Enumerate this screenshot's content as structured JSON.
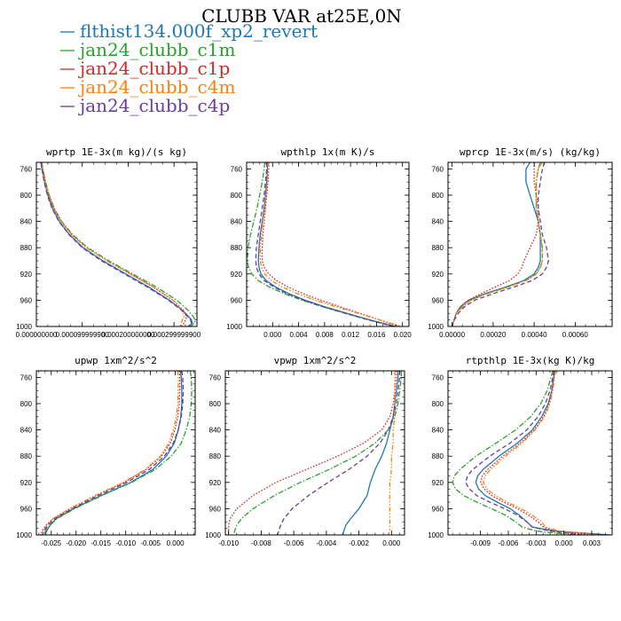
{
  "figure": {
    "title": "CLUBB VAR at25E,0N"
  },
  "legend": [
    {
      "label": "flthist134.000f_xp2_revert",
      "color": "#1f77b4",
      "dash": "solid"
    },
    {
      "label": "jan24_clubb_c1m",
      "color": "#2ca02c",
      "dash": "dashdot"
    },
    {
      "label": "jan24_clubb_c1p",
      "color": "#d62728",
      "dash": "dot"
    },
    {
      "label": "jan24_clubb_c4m",
      "color": "#ff7f0e",
      "dash": "dashdotdot"
    },
    {
      "label": "jan24_clubb_c4p",
      "color": "#6a3d9a",
      "dash": "dash"
    }
  ],
  "chart_data": [
    {
      "type": "line",
      "title": "wprtp  1E-3x(m kg)/(s kg)",
      "xlim": [
        0.0,
        0.00035
      ],
      "ylim": [
        1000,
        750
      ],
      "yticks": [
        760,
        800,
        840,
        880,
        920,
        960,
        1000
      ],
      "xticks": [
        "0.000000000",
        "0.000099999900",
        "0.000200000000",
        "0.000299999900"
      ],
      "xtick_values": [
        0.0,
        0.0001,
        0.0002,
        0.0003
      ],
      "y": [
        750,
        760,
        780,
        800,
        820,
        840,
        860,
        880,
        900,
        920,
        940,
        960,
        975,
        985,
        990,
        995,
        1000
      ],
      "series": [
        {
          "values": [
            1e-05,
            1.2e-05,
            1.8e-05,
            2.5e-05,
            3.5e-05,
            5e-05,
            7.2e-05,
            0.000102,
            0.000145,
            0.000195,
            0.000245,
            0.00029,
            0.000318,
            0.000332,
            0.000338,
            0.00034,
            0.00033
          ]
        },
        {
          "values": [
            1.2e-05,
            1.4e-05,
            2e-05,
            2.8e-05,
            3.9e-05,
            5.5e-05,
            7.9e-05,
            0.000112,
            0.000158,
            0.00021,
            0.000262,
            0.000306,
            0.00033,
            0.000342,
            0.000346,
            0.000345,
            0.000335
          ]
        },
        {
          "values": [
            1.2e-05,
            1.4e-05,
            2e-05,
            2.7e-05,
            3.8e-05,
            5.4e-05,
            7.7e-05,
            0.000109,
            0.000154,
            0.000205,
            0.000255,
            0.000298,
            0.00032,
            0.000328,
            0.000325,
            0.000322,
            0.000315
          ]
        },
        {
          "values": [
            1.1e-05,
            1.3e-05,
            1.9e-05,
            2.7e-05,
            3.8e-05,
            5.4e-05,
            7.7e-05,
            0.000109,
            0.000154,
            0.000205,
            0.000255,
            0.000298,
            0.000318,
            0.000322,
            0.000318,
            0.000316,
            0.000312
          ]
        },
        {
          "values": [
            1e-05,
            1.2e-05,
            1.7e-05,
            2.4e-05,
            3.4e-05,
            4.9e-05,
            7.1e-05,
            0.0001,
            0.000142,
            0.000192,
            0.000242,
            0.000288,
            0.000316,
            0.00033,
            0.000336,
            0.000338,
            0.000332
          ]
        }
      ]
    },
    {
      "type": "line",
      "title": "wpthlp  1x(m K)/s",
      "xlim": [
        -0.004,
        0.021
      ],
      "ylim": [
        1000,
        750
      ],
      "yticks": [
        760,
        800,
        840,
        880,
        920,
        960,
        1000
      ],
      "xticks": [
        "0.000",
        "0.004",
        "0.008",
        "0.012",
        "0.016",
        "0.020"
      ],
      "xtick_values": [
        0.0,
        0.004,
        0.008,
        0.012,
        0.016,
        0.02
      ],
      "y": [
        750,
        760,
        780,
        800,
        820,
        840,
        860,
        880,
        900,
        910,
        920,
        930,
        940,
        950,
        960,
        970,
        980,
        990,
        1000
      ],
      "series": [
        {
          "values": [
            -0.0008,
            -0.0008,
            -0.0009,
            -0.0011,
            -0.0013,
            -0.0016,
            -0.0019,
            -0.0021,
            -0.0022,
            -0.0021,
            -0.0018,
            -0.001,
            0.0005,
            0.0025,
            0.005,
            0.008,
            0.0115,
            0.015,
            0.019
          ]
        },
        {
          "values": [
            -0.0012,
            -0.0013,
            -0.0016,
            -0.002,
            -0.0024,
            -0.0029,
            -0.0034,
            -0.0038,
            -0.0039,
            -0.0037,
            -0.0032,
            -0.0022,
            -0.0005,
            0.0018,
            0.0045,
            0.0077,
            0.0112,
            0.0148,
            0.0188
          ]
        },
        {
          "values": [
            -0.0006,
            -0.0006,
            -0.0007,
            -0.0009,
            -0.0011,
            -0.0013,
            -0.0015,
            -0.0016,
            -0.0016,
            -0.0013,
            -0.0006,
            0.0006,
            0.0024,
            0.0047,
            0.0074,
            0.0104,
            0.0135,
            0.0165,
            0.0195
          ]
        },
        {
          "values": [
            -0.0007,
            -0.0007,
            -0.0008,
            -0.001,
            -0.0012,
            -0.0015,
            -0.0017,
            -0.0019,
            -0.0019,
            -0.0017,
            -0.0012,
            -0.0002,
            0.0015,
            0.0038,
            0.0066,
            0.0098,
            0.0132,
            0.0165,
            0.0198
          ]
        },
        {
          "values": [
            -0.0009,
            -0.0009,
            -0.0011,
            -0.0013,
            -0.0016,
            -0.0019,
            -0.0022,
            -0.0025,
            -0.0026,
            -0.0025,
            -0.0021,
            -0.0013,
            0.0002,
            0.0022,
            0.0048,
            0.0078,
            0.0112,
            0.0148,
            0.0186
          ]
        }
      ]
    },
    {
      "type": "line",
      "title": "wprcp  1E-3x(m/s) (kg/kg)",
      "xlim": [
        -2e-05,
        0.00078
      ],
      "ylim": [
        1000,
        750
      ],
      "yticks": [
        760,
        800,
        840,
        880,
        920,
        960,
        1000
      ],
      "xticks": [
        "0.00000",
        "0.00020",
        "0.00040",
        "0.00060"
      ],
      "xtick_values": [
        0.0,
        0.0002,
        0.0004,
        0.0006
      ],
      "y": [
        750,
        760,
        780,
        800,
        820,
        840,
        860,
        880,
        900,
        910,
        920,
        930,
        940,
        950,
        960,
        970,
        980,
        990,
        1000
      ],
      "series": [
        {
          "values": [
            0.00038,
            0.00036,
            0.00036,
            0.00038,
            0.0004,
            0.00042,
            0.00043,
            0.00043,
            0.00043,
            0.00042,
            0.0004,
            0.00035,
            0.00026,
            0.00016,
            8e-05,
            4e-05,
            2e-05,
            1e-05,
            0.0
          ]
        },
        {
          "values": [
            0.00043,
            0.00042,
            0.00041,
            0.00041,
            0.00041,
            0.00042,
            0.00043,
            0.00044,
            0.00044,
            0.00043,
            0.00041,
            0.00036,
            0.00027,
            0.00017,
            9e-05,
            5e-05,
            2e-05,
            1e-05,
            0.0
          ]
        },
        {
          "values": [
            0.0004,
            0.0004,
            0.0004,
            0.00041,
            0.00042,
            0.00042,
            0.00041,
            0.00038,
            0.00035,
            0.00034,
            0.00032,
            0.00028,
            0.00021,
            0.00014,
            8e-05,
            4e-05,
            2e-05,
            1e-05,
            0.0
          ]
        },
        {
          "values": [
            0.00044,
            0.00042,
            0.00041,
            0.00041,
            0.00041,
            0.00042,
            0.00043,
            0.00044,
            0.00044,
            0.00043,
            0.00041,
            0.00036,
            0.00027,
            0.00017,
            9e-05,
            5e-05,
            2e-05,
            1e-05,
            0.0
          ]
        },
        {
          "values": [
            0.00045,
            0.00044,
            0.00043,
            0.00042,
            0.00042,
            0.00043,
            0.00044,
            0.00046,
            0.00047,
            0.00046,
            0.00044,
            0.00039,
            0.0003,
            0.0002,
            0.00011,
            6e-05,
            3e-05,
            1e-05,
            0.0
          ]
        }
      ]
    },
    {
      "type": "line",
      "title": "upwp  1xm^2/s^2",
      "xlim": [
        -0.028,
        0.004
      ],
      "ylim": [
        1000,
        750
      ],
      "yticks": [
        760,
        800,
        840,
        880,
        920,
        960,
        1000
      ],
      "xticks": [
        "-0.025",
        "-0.020",
        "-0.015",
        "-0.010",
        "-0.005",
        "0.000"
      ],
      "xtick_values": [
        -0.025,
        -0.02,
        -0.015,
        -0.01,
        -0.005,
        0.0
      ],
      "y": [
        750,
        760,
        780,
        800,
        820,
        840,
        860,
        880,
        900,
        920,
        940,
        960,
        975,
        985,
        992,
        1000
      ],
      "series": [
        {
          "values": [
            0.001,
            0.0012,
            0.0013,
            0.0013,
            0.0011,
            0.0006,
            -0.0002,
            -0.0018,
            -0.0045,
            -0.009,
            -0.015,
            -0.0205,
            -0.024,
            -0.0252,
            -0.0258,
            -0.0262
          ]
        },
        {
          "values": [
            0.003,
            0.0032,
            0.0033,
            0.0032,
            0.0029,
            0.0022,
            0.0012,
            -0.0008,
            -0.004,
            -0.0088,
            -0.0148,
            -0.0203,
            -0.0238,
            -0.0252,
            -0.026,
            -0.0265
          ]
        },
        {
          "values": [
            0.0008,
            0.0009,
            0.0009,
            0.0008,
            0.0005,
            -0.0001,
            -0.001,
            -0.0028,
            -0.0058,
            -0.0103,
            -0.016,
            -0.0212,
            -0.0246,
            -0.026,
            -0.0267,
            -0.0272
          ]
        },
        {
          "values": [
            0.0005,
            0.0006,
            0.0006,
            0.0005,
            0.0002,
            -0.0004,
            -0.0013,
            -0.003,
            -0.006,
            -0.0105,
            -0.0162,
            -0.0213,
            -0.0246,
            -0.0258,
            -0.0264,
            -0.027
          ]
        },
        {
          "values": [
            0.0013,
            0.0015,
            0.0016,
            0.0015,
            0.0012,
            0.0006,
            -0.0004,
            -0.0022,
            -0.0052,
            -0.0098,
            -0.0156,
            -0.0208,
            -0.0242,
            -0.0256,
            -0.0263,
            -0.0268
          ]
        }
      ]
    },
    {
      "type": "line",
      "title": "vpwp  1xm^2/s^2",
      "xlim": [
        -0.0102,
        0.0008
      ],
      "ylim": [
        1000,
        750
      ],
      "yticks": [
        760,
        800,
        840,
        880,
        920,
        960,
        1000
      ],
      "xticks": [
        "-0.010",
        "-0.008",
        "-0.006",
        "-0.004",
        "-0.002",
        "0.000"
      ],
      "xtick_values": [
        -0.01,
        -0.008,
        -0.006,
        -0.004,
        -0.002,
        0.0
      ],
      "y": [
        750,
        760,
        780,
        800,
        820,
        840,
        860,
        880,
        900,
        920,
        940,
        960,
        975,
        985,
        992,
        1000
      ],
      "series": [
        {
          "values": [
            0.0004,
            0.0004,
            0.0003,
            0.0002,
            0.0001,
            -0.0001,
            -0.0003,
            -0.0006,
            -0.001,
            -0.0013,
            -0.0015,
            -0.002,
            -0.0025,
            -0.0028,
            -0.0029,
            -0.003
          ]
        },
        {
          "values": [
            0.0006,
            0.0006,
            0.0005,
            0.0004,
            0.0002,
            -0.0002,
            -0.001,
            -0.0022,
            -0.0038,
            -0.0056,
            -0.0072,
            -0.0085,
            -0.0092,
            -0.0095,
            -0.0096,
            -0.0097
          ]
        },
        {
          "values": [
            0.0003,
            0.0003,
            0.0002,
            0.0001,
            -0.0001,
            -0.0006,
            -0.0017,
            -0.0033,
            -0.0052,
            -0.0071,
            -0.0085,
            -0.0095,
            -0.0099,
            -0.01,
            -0.01,
            -0.01
          ]
        },
        {
          "values": [
            0.0002,
            0.0002,
            0.0002,
            0.0002,
            0.0002,
            0.0001,
            0.0001,
            0.0,
            0.0,
            -0.0001,
            -0.0001,
            -0.0001,
            -0.0001,
            -0.0001,
            -0.0001,
            -0.0002
          ]
        },
        {
          "values": [
            0.0005,
            0.0005,
            0.0004,
            0.0003,
            0.0001,
            -0.0002,
            -0.0007,
            -0.0015,
            -0.0026,
            -0.0039,
            -0.0051,
            -0.0061,
            -0.0066,
            -0.0068,
            -0.0069,
            -0.007
          ]
        }
      ]
    },
    {
      "type": "line",
      "title": "rtpthlp  1E-3x(kg K)/kg",
      "xlim": [
        -0.0125,
        0.0052
      ],
      "ylim": [
        1000,
        750
      ],
      "yticks": [
        760,
        800,
        840,
        880,
        920,
        960,
        1000
      ],
      "xticks": [
        "-0.009",
        "-0.006",
        "-0.003",
        "0.000",
        "0.003"
      ],
      "xtick_values": [
        -0.009,
        -0.006,
        -0.003,
        0.0,
        0.003
      ],
      "y": [
        750,
        760,
        780,
        800,
        820,
        840,
        860,
        880,
        900,
        910,
        920,
        930,
        940,
        950,
        960,
        970,
        980,
        988,
        994,
        1000
      ],
      "series": [
        {
          "values": [
            -0.001,
            -0.0011,
            -0.0013,
            -0.0017,
            -0.0024,
            -0.0034,
            -0.005,
            -0.007,
            -0.0087,
            -0.0093,
            -0.0095,
            -0.0092,
            -0.0085,
            -0.0072,
            -0.0058,
            -0.0048,
            -0.004,
            -0.0034,
            -0.001,
            0.005
          ]
        },
        {
          "values": [
            -0.0012,
            -0.0014,
            -0.0018,
            -0.0025,
            -0.0036,
            -0.0052,
            -0.0073,
            -0.0095,
            -0.0112,
            -0.0118,
            -0.012,
            -0.0117,
            -0.0108,
            -0.0094,
            -0.0078,
            -0.0063,
            -0.0052,
            -0.0045,
            -0.003,
            0.001
          ]
        },
        {
          "values": [
            -0.001,
            -0.0011,
            -0.0013,
            -0.0016,
            -0.0022,
            -0.0032,
            -0.0047,
            -0.0066,
            -0.0082,
            -0.0088,
            -0.009,
            -0.0086,
            -0.0078,
            -0.0065,
            -0.005,
            -0.0038,
            -0.0028,
            -0.0022,
            -0.001,
            0.003
          ]
        },
        {
          "values": [
            -0.0009,
            -0.001,
            -0.0012,
            -0.0015,
            -0.0021,
            -0.0031,
            -0.0045,
            -0.0063,
            -0.0079,
            -0.0085,
            -0.0087,
            -0.0083,
            -0.0074,
            -0.0061,
            -0.0046,
            -0.0034,
            -0.0024,
            -0.002,
            -0.0005,
            0.004
          ]
        },
        {
          "values": [
            -0.0011,
            -0.0012,
            -0.0015,
            -0.002,
            -0.0028,
            -0.004,
            -0.0058,
            -0.008,
            -0.0098,
            -0.0104,
            -0.0106,
            -0.0102,
            -0.0094,
            -0.008,
            -0.0064,
            -0.005,
            -0.004,
            -0.0034,
            -0.0015,
            0.002
          ]
        }
      ]
    }
  ]
}
